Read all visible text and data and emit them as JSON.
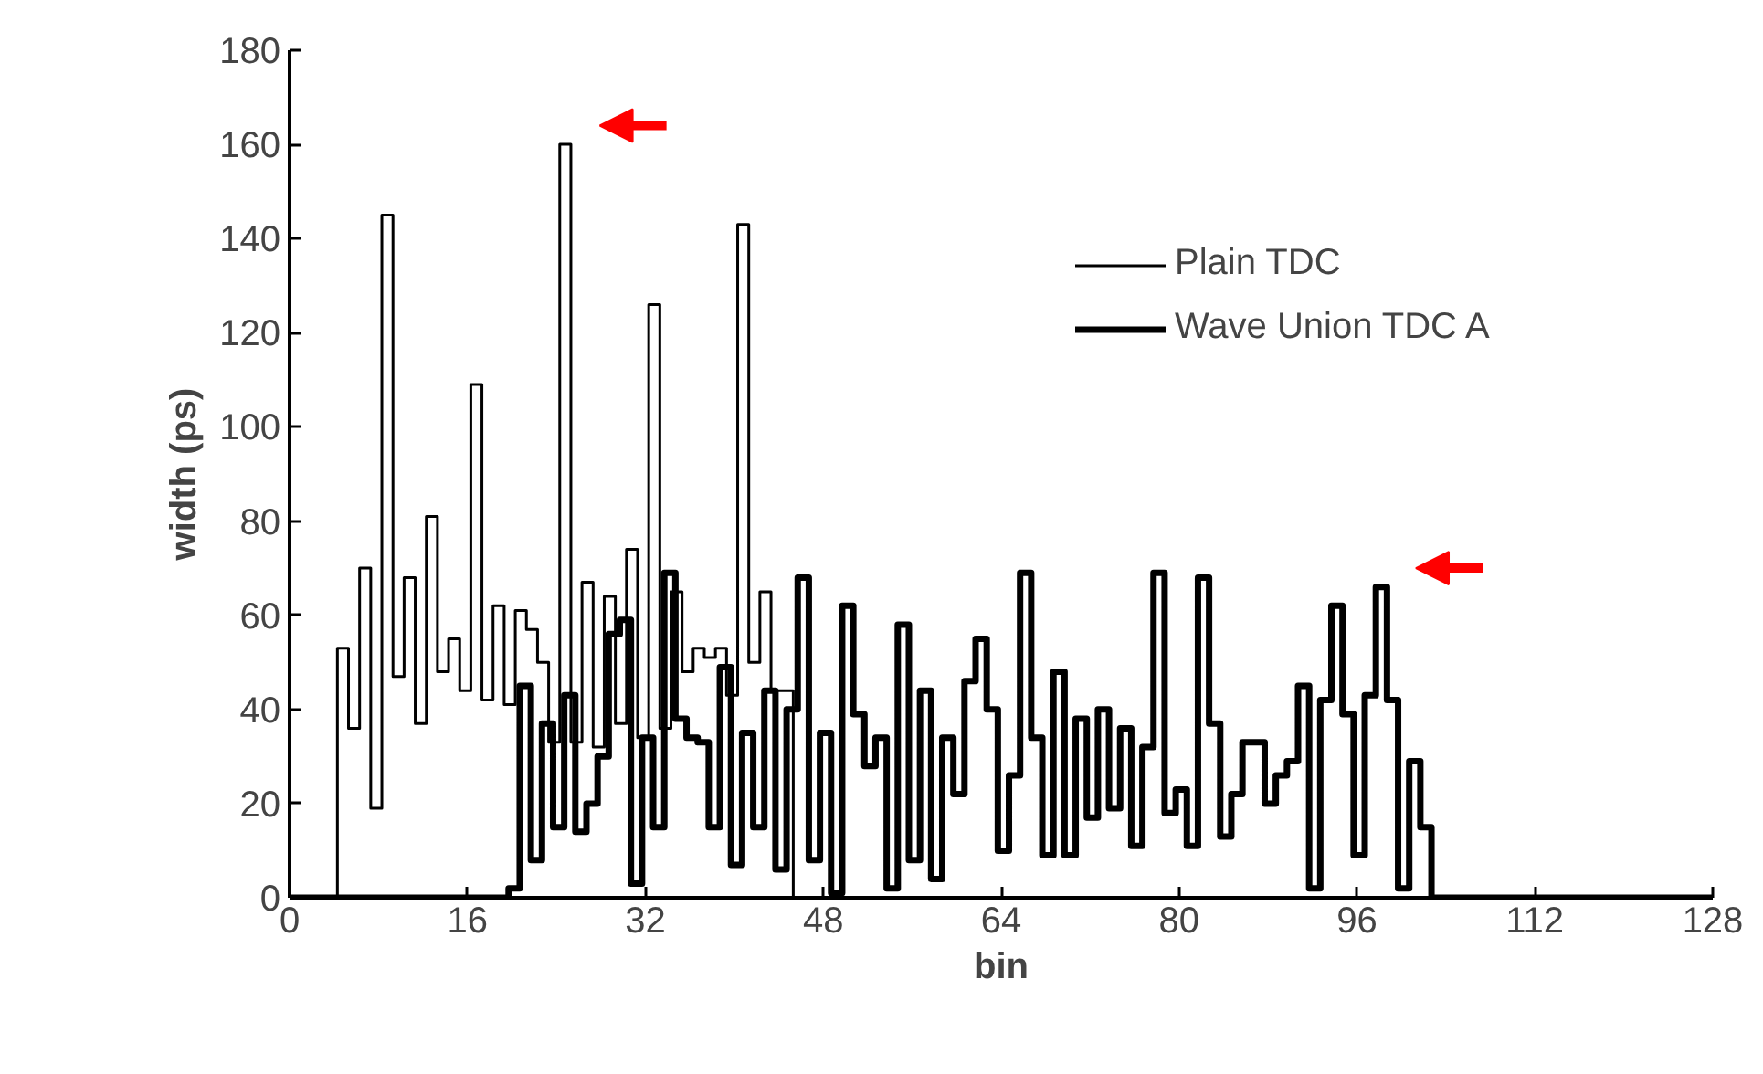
{
  "chart_data": {
    "type": "step",
    "xlabel": "bin",
    "ylabel": "width (ps)",
    "xlim": [
      0,
      128
    ],
    "xticks": [
      0,
      16,
      32,
      48,
      64,
      80,
      96,
      112,
      128
    ],
    "ylim": [
      0,
      180
    ],
    "yticks": [
      0,
      20,
      40,
      60,
      80,
      100,
      120,
      140,
      160,
      180
    ],
    "grid": false,
    "legend": "top right",
    "marker": "none",
    "line_style": "solid",
    "series": [
      {
        "name": "Plain TDC",
        "color": "#000000",
        "x": [
          0,
          4.3,
          5.3,
          6.3,
          7.3,
          8.3,
          9.3,
          10.3,
          11.3,
          12.3,
          13.3,
          14.3,
          15.3,
          16.3,
          17.3,
          18.3,
          19.3,
          20.3,
          21.3,
          22.3,
          23.3,
          24.3,
          25.3,
          26.3,
          27.3,
          28.3,
          29.3,
          30.3,
          31.3,
          32.3,
          33.3,
          34.3,
          35.3,
          36.3,
          37.3,
          38.3,
          39.3,
          40.3,
          41.3,
          42.3,
          43.3,
          44.3,
          45.3,
          64
        ],
        "values": [
          0,
          53,
          36,
          70,
          19,
          145,
          47,
          68,
          37,
          81,
          48,
          55,
          44,
          109,
          42,
          62,
          41,
          61,
          57,
          50,
          33,
          160,
          33,
          67,
          32,
          64,
          37,
          74,
          34,
          126,
          36,
          65,
          48,
          53,
          51,
          53,
          43,
          143,
          50,
          65,
          44,
          44,
          0,
          0
        ]
      },
      {
        "name": "Wave Union TDC A",
        "color": "#000000",
        "x": [
          0,
          19.7,
          20.7,
          21.7,
          22.7,
          23.7,
          24.7,
          25.7,
          26.7,
          27.7,
          28.7,
          29.7,
          30.7,
          31.7,
          32.7,
          33.7,
          34.7,
          35.7,
          36.7,
          37.7,
          38.7,
          39.7,
          40.7,
          41.7,
          42.7,
          43.7,
          44.7,
          45.7,
          46.7,
          47.7,
          48.7,
          49.7,
          50.7,
          51.7,
          52.7,
          53.7,
          54.7,
          55.7,
          56.7,
          57.7,
          58.7,
          59.7,
          60.7,
          61.7,
          62.7,
          63.7,
          64.7,
          65.7,
          66.7,
          67.7,
          68.7,
          69.7,
          70.7,
          71.7,
          72.7,
          73.7,
          74.7,
          75.7,
          76.7,
          77.7,
          78.7,
          79.7,
          80.7,
          81.7,
          82.7,
          83.7,
          84.7,
          85.7,
          86.7,
          87.7,
          88.7,
          89.7,
          90.7,
          91.7,
          92.7,
          93.7,
          94.7,
          95.7,
          96.7,
          97.7,
          98.7,
          99.7,
          100.7,
          101.7,
          102.7,
          128
        ],
        "values": [
          0,
          2,
          45,
          8,
          37,
          15,
          43,
          14,
          20,
          30,
          56,
          59,
          3,
          34,
          15,
          69,
          38,
          34,
          33,
          15,
          49,
          7,
          35,
          15,
          44,
          6,
          40,
          68,
          8,
          35,
          1,
          62,
          39,
          28,
          34,
          2,
          58,
          8,
          44,
          4,
          34,
          22,
          46,
          55,
          40,
          10,
          26,
          69,
          34,
          9,
          48,
          9,
          38,
          17,
          40,
          19,
          36,
          11,
          32,
          69,
          18,
          23,
          11,
          68,
          37,
          13,
          22,
          33,
          33,
          20,
          26,
          29,
          45,
          2,
          42,
          62,
          39,
          9,
          43,
          66,
          42,
          2,
          29,
          15,
          0,
          0
        ]
      }
    ]
  }
}
